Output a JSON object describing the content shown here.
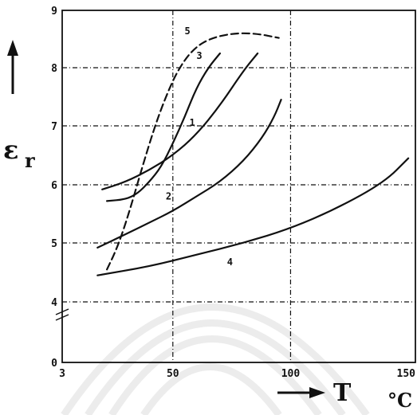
{
  "chart_data": {
    "type": "line",
    "xlabel": "T",
    "xunit": "°C",
    "ylabel": "εr",
    "xlim": [
      3,
      150
    ],
    "ylim": [
      0,
      9
    ],
    "x_ticks": [
      {
        "value": 3,
        "label": "3"
      },
      {
        "value": 50,
        "label": "50"
      },
      {
        "value": 100,
        "label": "100"
      },
      {
        "value": 150,
        "label": "150"
      }
    ],
    "y_ticks": [
      {
        "value": 0,
        "label": "0"
      },
      {
        "value": 4,
        "label": "4"
      },
      {
        "value": 5,
        "label": "5"
      },
      {
        "value": 6,
        "label": "6"
      },
      {
        "value": 7,
        "label": "7"
      },
      {
        "value": 8,
        "label": "8"
      },
      {
        "value": 9,
        "label": "9"
      }
    ],
    "y_axis_break": true,
    "grid": true,
    "series": [
      {
        "name": "1",
        "dashed": false,
        "label_at": [
          57,
          7.0
        ],
        "points": [
          [
            20,
            5.92
          ],
          [
            30,
            6.05
          ],
          [
            40,
            6.25
          ],
          [
            50,
            6.5
          ],
          [
            60,
            6.85
          ],
          [
            70,
            7.35
          ],
          [
            80,
            7.95
          ],
          [
            86,
            8.25
          ]
        ]
      },
      {
        "name": "2",
        "dashed": false,
        "label_at": [
          47,
          5.75
        ],
        "points": [
          [
            18,
            4.92
          ],
          [
            30,
            5.15
          ],
          [
            40,
            5.35
          ],
          [
            50,
            5.55
          ],
          [
            60,
            5.8
          ],
          [
            70,
            6.05
          ],
          [
            80,
            6.4
          ],
          [
            88,
            6.8
          ],
          [
            93,
            7.15
          ],
          [
            96,
            7.45
          ]
        ]
      },
      {
        "name": "3",
        "dashed": false,
        "label_at": [
          60,
          8.15
        ],
        "points": [
          [
            22,
            5.72
          ],
          [
            30,
            5.75
          ],
          [
            35,
            5.85
          ],
          [
            40,
            6.05
          ],
          [
            45,
            6.3
          ],
          [
            50,
            6.7
          ],
          [
            55,
            7.15
          ],
          [
            60,
            7.65
          ],
          [
            65,
            8.0
          ],
          [
            70,
            8.25
          ]
        ]
      },
      {
        "name": "4",
        "dashed": false,
        "label_at": [
          73,
          4.62
        ],
        "points": [
          [
            18,
            4.45
          ],
          [
            40,
            4.6
          ],
          [
            60,
            4.8
          ],
          [
            80,
            5.0
          ],
          [
            100,
            5.25
          ],
          [
            120,
            5.6
          ],
          [
            140,
            6.05
          ],
          [
            150,
            6.45
          ]
        ]
      },
      {
        "name": "5",
        "dashed": true,
        "label_at": [
          55,
          8.58
        ],
        "points": [
          [
            22,
            4.55
          ],
          [
            25,
            4.8
          ],
          [
            28,
            5.1
          ],
          [
            32,
            5.6
          ],
          [
            37,
            6.3
          ],
          [
            42,
            6.95
          ],
          [
            47,
            7.5
          ],
          [
            52,
            7.95
          ],
          [
            58,
            8.3
          ],
          [
            65,
            8.5
          ],
          [
            75,
            8.6
          ],
          [
            85,
            8.6
          ],
          [
            95,
            8.52
          ]
        ]
      }
    ]
  }
}
